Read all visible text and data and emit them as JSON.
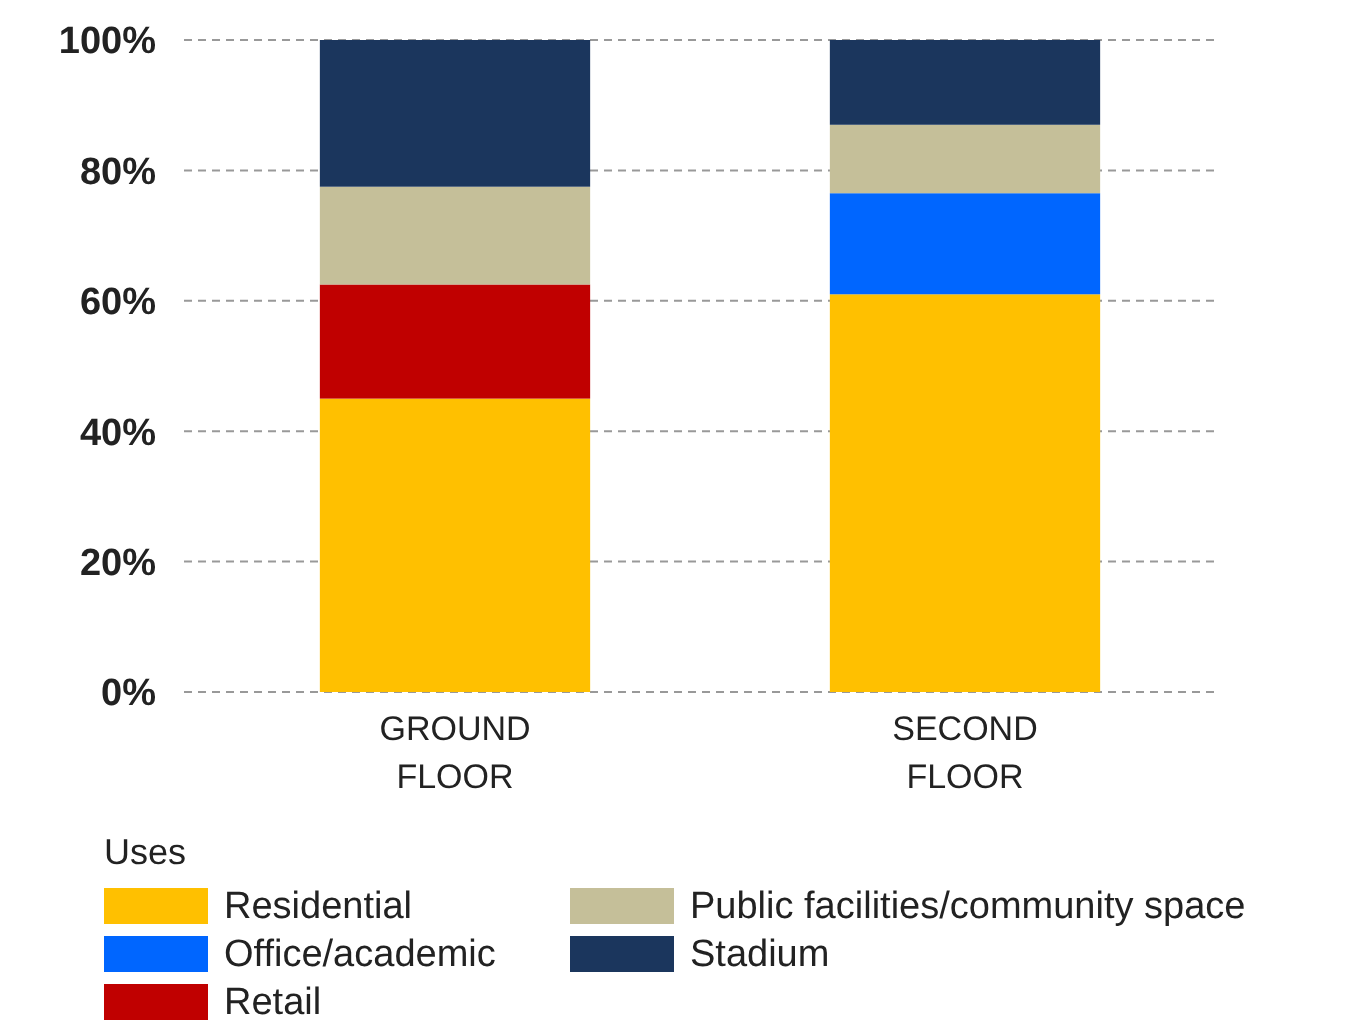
{
  "chart_data": {
    "type": "bar",
    "stacked": true,
    "categories": [
      "GROUND FLOOR",
      "SECOND FLOOR"
    ],
    "series": [
      {
        "name": "Residential",
        "color": "#ffc000",
        "values": [
          45,
          61
        ]
      },
      {
        "name": "Office/academic",
        "color": "#0066ff",
        "values": [
          0,
          15.5
        ]
      },
      {
        "name": "Retail",
        "color": "#c00000",
        "values": [
          17.5,
          0
        ]
      },
      {
        "name": "Public facilities/community space",
        "color": "#c5bf99",
        "values": [
          15,
          10.5
        ]
      },
      {
        "name": "Stadium",
        "color": "#1b365d",
        "values": [
          22.5,
          13
        ]
      }
    ],
    "ylim": [
      0,
      100
    ],
    "yticks": [
      {
        "value": 0,
        "label": "0%"
      },
      {
        "value": 20,
        "label": "20%"
      },
      {
        "value": 40,
        "label": "40%"
      },
      {
        "value": 60,
        "label": "60%"
      },
      {
        "value": 80,
        "label": "80%"
      },
      {
        "value": 100,
        "label": "100%"
      }
    ],
    "grid": "y",
    "legend": "bottom",
    "legend_title": "Uses"
  }
}
